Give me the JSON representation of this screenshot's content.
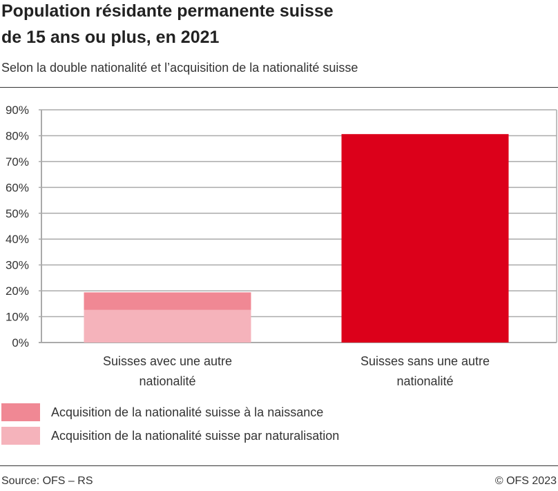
{
  "title_line1": "Population résidante permanente suisse",
  "title_line2": "de 15 ans ou plus, en 2021",
  "subtitle": "Selon la double nationalité et l’acquisition de la nationalité suisse",
  "colors": {
    "naissance": "#f08894",
    "naturalisation": "#f5b3bb",
    "sans": "#dc001a",
    "grid": "#aaaaaa"
  },
  "chart_data": {
    "type": "bar",
    "stacked": true,
    "title": "Population résidante permanente suisse de 15 ans ou plus, en 2021",
    "subtitle": "Selon la double nationalité et l’acquisition de la nationalité suisse",
    "categories": [
      "Suisses avec une autre nationalité",
      "Suisses sans une autre nationalité"
    ],
    "category_label_lines": [
      [
        "Suisses avec une autre",
        "nationalité"
      ],
      [
        "Suisses sans une autre",
        "nationalité"
      ]
    ],
    "series": [
      {
        "name": "Acquisition de la nationalité suisse par naturalisation",
        "values": [
          12.6,
          null
        ],
        "color": "#f5b3bb"
      },
      {
        "name": "Acquisition de la nationalité suisse à la naissance",
        "values": [
          6.8,
          null
        ],
        "color": "#f08894"
      },
      {
        "values": [
          null,
          80.6
        ],
        "color": "#dc001a"
      }
    ],
    "ylim": [
      0,
      90
    ],
    "yticks": [
      0,
      10,
      20,
      30,
      40,
      50,
      60,
      70,
      80,
      90
    ],
    "ytick_labels": [
      "0%",
      "10%",
      "20%",
      "30%",
      "40%",
      "50%",
      "60%",
      "70%",
      "80%",
      "90%"
    ],
    "grid": true,
    "legend_placement": "bottom"
  },
  "legend": [
    {
      "label": "Acquisition de la nationalité suisse à la naissance",
      "color": "#f08894"
    },
    {
      "label": "Acquisition de la nationalité suisse par naturalisation",
      "color": "#f5b3bb"
    }
  ],
  "footer": {
    "source": "Source: OFS –  RS",
    "copyright": "© OFS 2023"
  }
}
